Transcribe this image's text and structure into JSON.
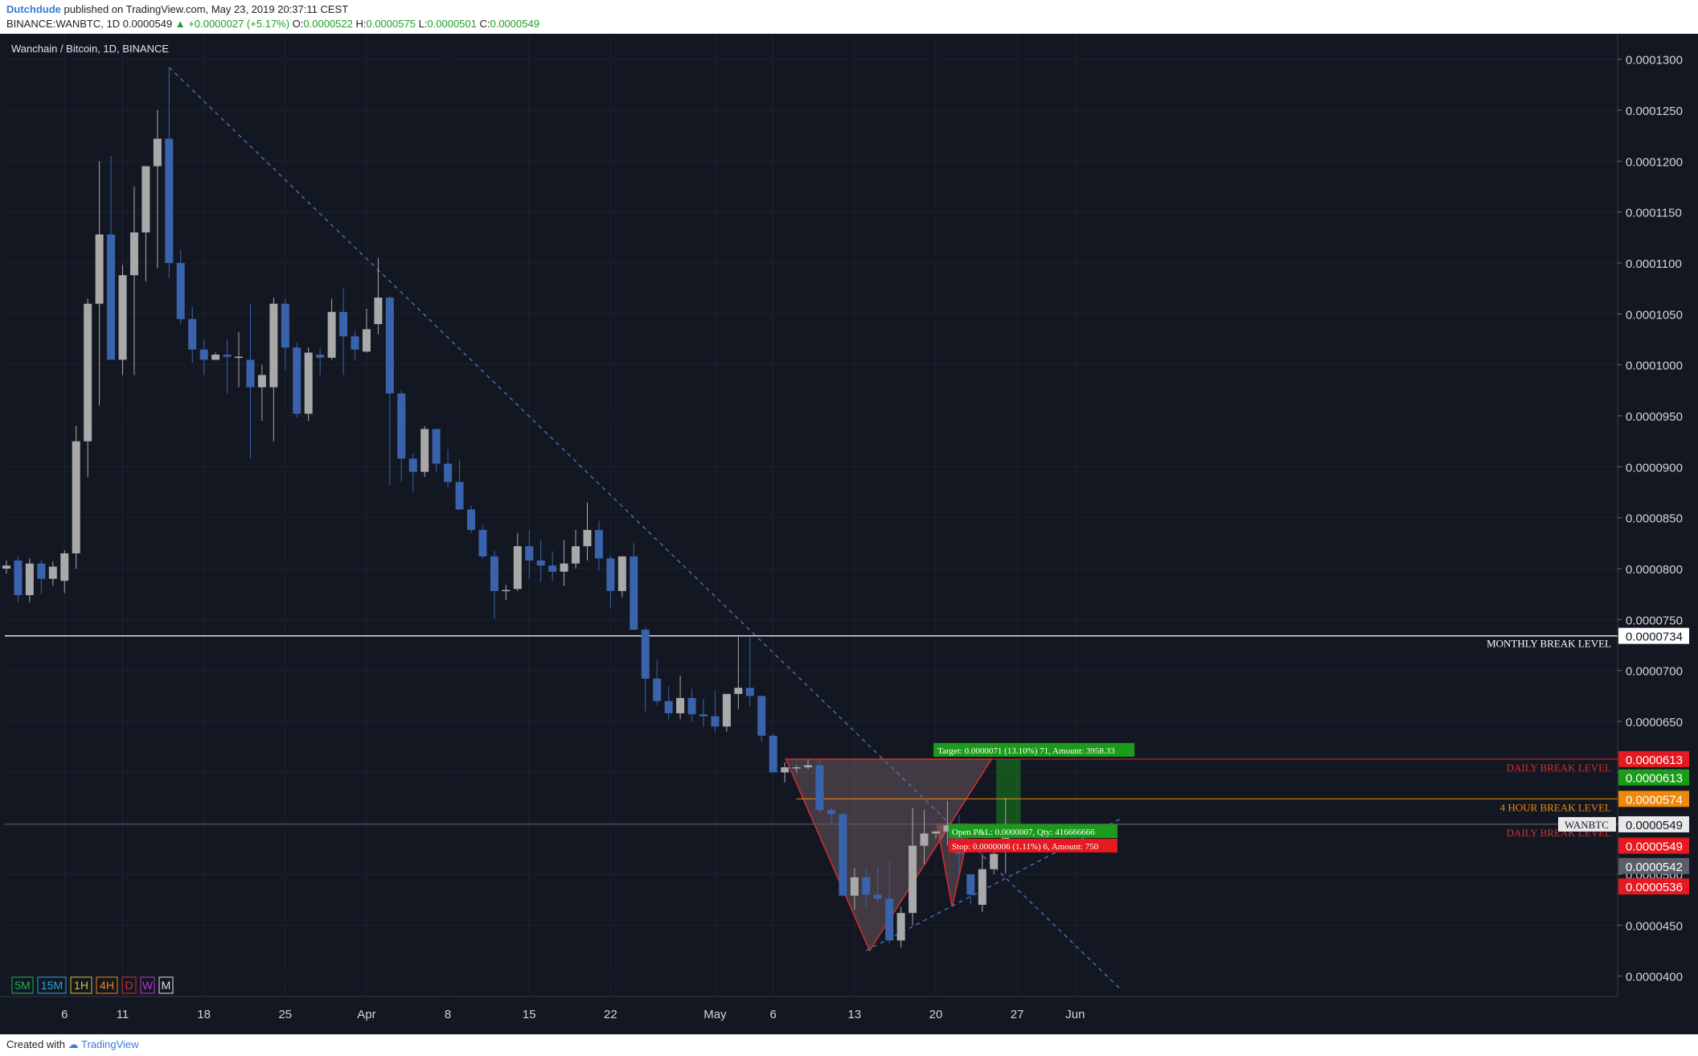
{
  "header": {
    "author": "Dutchdude",
    "published": "published on TradingView.com, May 23, 2019 20:37:11 CEST",
    "symbol_line_prefix": "BINANCE:WANBTC, 1D",
    "last_price": "0.0000549",
    "change": "▲ +0.0000027 (+5.17%)",
    "ohlc": {
      "o_label": "O:",
      "o": "0.0000522",
      "h_label": "H:",
      "h": "0.0000575",
      "l_label": "L:",
      "l": "0.0000501",
      "c_label": "C:",
      "c": "0.0000549"
    }
  },
  "chart_title": "Wanchain / Bitcoin, 1D, BINANCE",
  "footer": {
    "created_with": "Created with",
    "brand": "TradingView"
  },
  "colors": {
    "background": "#131722",
    "bull": "#a9a9a9",
    "bear": "#3a63ad",
    "grid": "#1e2230",
    "axis_text": "#d1d4dc",
    "trendline": "#4a78c8",
    "red_level": "#d32f2f",
    "orange_level": "#f0890b",
    "green": "#1a9c1a"
  },
  "timeframes": [
    {
      "label": "5M",
      "color": "#22b14c"
    },
    {
      "label": "15M",
      "color": "#2aa7d8"
    },
    {
      "label": "1H",
      "color": "#d6c218"
    },
    {
      "label": "4H",
      "color": "#f0890b"
    },
    {
      "label": "D",
      "color": "#d32f2f"
    },
    {
      "label": "W",
      "color": "#b535c8"
    },
    {
      "label": "M",
      "color": "#e0e0e0"
    }
  ],
  "chart_data": {
    "type": "candlestick",
    "title": "Wanchain / Bitcoin, 1D, BINANCE",
    "ylim": [
      3.8e-05,
      0.0001325
    ],
    "y_ticks": [
      "0.0001300",
      "0.0001250",
      "0.0001200",
      "0.0001150",
      "0.0001100",
      "0.0001050",
      "0.0001000",
      "0.0000950",
      "0.0000900",
      "0.0000850",
      "0.0000800",
      "0.0000750",
      "0.0000700",
      "0.0000650",
      "0.0000600",
      "0.0000550",
      "0.0000500",
      "0.0000450",
      "0.0000400"
    ],
    "x_ticks": [
      {
        "label": "6",
        "day": 5
      },
      {
        "label": "11",
        "day": 10
      },
      {
        "label": "18",
        "day": 17
      },
      {
        "label": "25",
        "day": 24
      },
      {
        "label": "Apr",
        "day": 31
      },
      {
        "label": "8",
        "day": 38
      },
      {
        "label": "15",
        "day": 45
      },
      {
        "label": "22",
        "day": 52
      },
      {
        "label": "May",
        "day": 61
      },
      {
        "label": "6",
        "day": 66
      },
      {
        "label": "13",
        "day": 73
      },
      {
        "label": "20",
        "day": 80
      },
      {
        "label": "27",
        "day": 87
      },
      {
        "label": "Jun",
        "day": 92
      }
    ],
    "candles": [
      [
        8e-05,
        8.08e-05,
        7.95e-05,
        8.03e-05
      ],
      [
        8.08e-05,
        8.12e-05,
        7.67e-05,
        7.74e-05
      ],
      [
        7.74e-05,
        8.1e-05,
        7.67e-05,
        8.05e-05
      ],
      [
        8.05e-05,
        8.08e-05,
        7.75e-05,
        7.9e-05
      ],
      [
        7.9e-05,
        8.07e-05,
        7.83e-05,
        8.02e-05
      ],
      [
        7.88e-05,
        8.18e-05,
        7.76e-05,
        8.15e-05
      ],
      [
        8.15e-05,
        9.4e-05,
        8e-05,
        9.25e-05
      ],
      [
        9.25e-05,
        0.0001065,
        8.9e-05,
        0.000106
      ],
      [
        0.000106,
        0.00012,
        9.6e-05,
        0.0001128
      ],
      [
        0.0001128,
        0.0001205,
        0.0001005,
        0.0001005
      ],
      [
        0.0001005,
        0.0001098,
        9.9e-05,
        0.0001088
      ],
      [
        0.0001088,
        0.0001175,
        9.9e-05,
        0.000113
      ],
      [
        0.000113,
        0.0001195,
        0.0001082,
        0.0001195
      ],
      [
        0.0001195,
        0.000125,
        0.0001095,
        0.0001222
      ],
      [
        0.0001222,
        0.0001292,
        0.0001085,
        0.00011
      ],
      [
        0.00011,
        0.0001113,
        0.000104,
        0.0001045
      ],
      [
        0.0001045,
        0.0001057,
        0.0001002,
        0.0001015
      ],
      [
        0.0001015,
        0.0001025,
        9.9e-05,
        0.0001005
      ],
      [
        0.0001005,
        0.0001012,
        0.0001005,
        0.000101
      ],
      [
        0.000101,
        0.0001025,
        9.72e-05,
        0.0001008
      ],
      [
        0.0001008,
        0.0001032,
        9.78e-05,
        0.0001008
      ],
      [
        0.0001005,
        0.000106,
        9.08e-05,
        9.78e-05
      ],
      [
        9.78e-05,
        0.0001,
        9.45e-05,
        9.9e-05
      ],
      [
        9.78e-05,
        0.0001066,
        9.25e-05,
        0.000106
      ],
      [
        0.000106,
        0.0001065,
        9.95e-05,
        0.0001017
      ],
      [
        0.0001017,
        0.0001022,
        9.48e-05,
        9.52e-05
      ],
      [
        9.52e-05,
        0.0001017,
        9.45e-05,
        0.0001012
      ],
      [
        0.000101,
        0.0001017,
        9.9e-05,
        0.0001007
      ],
      [
        0.0001007,
        0.0001065,
        0.0001005,
        0.0001052
      ],
      [
        0.0001052,
        0.0001075,
        9.9e-05,
        0.0001028
      ],
      [
        0.0001028,
        0.0001033,
        0.0001005,
        0.0001015
      ],
      [
        0.0001013,
        0.0001055,
        0.0001012,
        0.0001035
      ],
      [
        0.000104,
        0.0001105,
        0.000103,
        0.0001066
      ],
      [
        0.0001066,
        0.0001068,
        8.82e-05,
        9.72e-05
      ],
      [
        9.72e-05,
        9.75e-05,
        8.85e-05,
        9.08e-05
      ],
      [
        9.08e-05,
        9.13e-05,
        8.75e-05,
        8.95e-05
      ],
      [
        8.95e-05,
        9.4e-05,
        8.9e-05,
        9.37e-05
      ],
      [
        9.37e-05,
        9.37e-05,
        8.95e-05,
        9.03e-05
      ],
      [
        9.03e-05,
        9.17e-05,
        8.8e-05,
        8.85e-05
      ],
      [
        8.85e-05,
        9.07e-05,
        8.58e-05,
        8.58e-05
      ],
      [
        8.58e-05,
        8.62e-05,
        8.35e-05,
        8.38e-05
      ],
      [
        8.38e-05,
        8.43e-05,
        8.1e-05,
        8.12e-05
      ],
      [
        8.12e-05,
        8.18e-05,
        7.51e-05,
        7.78e-05
      ],
      [
        7.78e-05,
        7.84e-05,
        7.69e-05,
        7.79e-05
      ],
      [
        7.8e-05,
        8.35e-05,
        7.78e-05,
        8.22e-05
      ],
      [
        8.22e-05,
        8.38e-05,
        7.9e-05,
        8.08e-05
      ],
      [
        8.08e-05,
        8.28e-05,
        7.87e-05,
        8.03e-05
      ],
      [
        8.03e-05,
        8.17e-05,
        7.88e-05,
        7.97e-05
      ],
      [
        7.97e-05,
        8.28e-05,
        7.83e-05,
        8.05e-05
      ],
      [
        8.05e-05,
        8.38e-05,
        8e-05,
        8.22e-05
      ],
      [
        8.22e-05,
        8.65e-05,
        8.08e-05,
        8.38e-05
      ],
      [
        8.38e-05,
        8.47e-05,
        7.98e-05,
        8.1e-05
      ],
      [
        8.1e-05,
        8.13e-05,
        7.62e-05,
        7.78e-05
      ],
      [
        7.78e-05,
        8.12e-05,
        7.72e-05,
        8.12e-05
      ],
      [
        8.12e-05,
        8.25e-05,
        7.4e-05,
        7.4e-05
      ],
      [
        7.4e-05,
        7.42e-05,
        6.6e-05,
        6.92e-05
      ],
      [
        6.92e-05,
        7.1e-05,
        6.66e-05,
        6.7e-05
      ],
      [
        6.7e-05,
        6.85e-05,
        6.52e-05,
        6.58e-05
      ],
      [
        6.58e-05,
        6.95e-05,
        6.52e-05,
        6.73e-05
      ],
      [
        6.73e-05,
        6.82e-05,
        6.5e-05,
        6.57e-05
      ],
      [
        6.57e-05,
        6.72e-05,
        6.45e-05,
        6.55e-05
      ],
      [
        6.55e-05,
        6.8e-05,
        6.4e-05,
        6.45e-05
      ],
      [
        6.45e-05,
        6.76e-05,
        6.4e-05,
        6.77e-05
      ],
      [
        6.77e-05,
        7.33e-05,
        6.62e-05,
        6.83e-05
      ],
      [
        6.83e-05,
        7.33e-05,
        6.65e-05,
        6.75e-05
      ],
      [
        6.75e-05,
        6.75e-05,
        6.3e-05,
        6.36e-05
      ],
      [
        6.36e-05,
        6.38e-05,
        6e-05,
        6e-05
      ],
      [
        6e-05,
        6.1e-05,
        5.9e-05,
        6.05e-05
      ],
      [
        6.05e-05,
        6.07e-05,
        6e-05,
        6.05e-05
      ],
      [
        6.05e-05,
        6.13e-05,
        6.03e-05,
        6.07e-05
      ],
      [
        6.07e-05,
        6.12e-05,
        5.6e-05,
        5.63e-05
      ],
      [
        5.63e-05,
        5.65e-05,
        5.5e-05,
        5.59e-05
      ],
      [
        5.59e-05,
        5.6e-05,
        4.78e-05,
        4.79e-05
      ],
      [
        4.79e-05,
        5.06e-05,
        4.65e-05,
        4.97e-05
      ],
      [
        4.97e-05,
        5.05e-05,
        4.68e-05,
        4.8e-05
      ],
      [
        4.8e-05,
        5.07e-05,
        4.72e-05,
        4.76e-05
      ],
      [
        4.76e-05,
        5.12e-05,
        4.32e-05,
        4.35e-05
      ],
      [
        4.35e-05,
        4.68e-05,
        4.28e-05,
        4.62e-05
      ],
      [
        4.62e-05,
        5.65e-05,
        4.5e-05,
        5.28e-05
      ],
      [
        5.28e-05,
        5.63e-05,
        5.1e-05,
        5.4e-05
      ],
      [
        5.4e-05,
        5.42e-05,
        5.35e-05,
        5.42e-05
      ],
      [
        5.42e-05,
        5.72e-05,
        5.28e-05,
        5.48e-05
      ],
      [
        5.48e-05,
        5.58e-05,
        4.98e-05,
        5.2e-05
      ],
      [
        5e-05,
        5e-05,
        4.7e-05,
        4.8e-05
      ],
      [
        4.7e-05,
        5.2e-05,
        4.63e-05,
        5.05e-05
      ],
      [
        5.05e-05,
        5.23e-05,
        5e-05,
        5.2e-05
      ],
      [
        5.22e-05,
        5.75e-05,
        5.01e-05,
        5.49e-05
      ]
    ],
    "horizontal_lines": [
      {
        "label": "MONTHLY BREAK LEVEL",
        "price": 7.34e-05,
        "color": "#ffffff"
      },
      {
        "label": "4 HOUR BREAK LEVEL",
        "price": 5.74e-05,
        "color": "#f0890b",
        "start_day": 68
      },
      {
        "label": "DAILY BREAK LEVEL",
        "price": 6.13e-05,
        "color": "#d32f2f",
        "start_day": 67
      },
      {
        "label": "DAILY BREAK LEVEL",
        "price": 5.49e-05,
        "color": "#d32f2f",
        "start_day": 81
      }
    ],
    "trendlines": [
      {
        "from": [
          14,
          0.0001292
        ],
        "to": [
          96,
          3.86e-05
        ]
      },
      {
        "from": [
          74,
          4.25e-05
        ],
        "to": [
          96,
          5.55e-05
        ]
      }
    ],
    "price_labels": [
      {
        "text": "0.0000734",
        "price": 7.34e-05,
        "bg": "#ffffff",
        "fg": "#131722"
      },
      {
        "text": "0.0000613",
        "price": 6.13e-05,
        "bg": "#e5191f",
        "fg": "#ffffff"
      },
      {
        "text": "0.0000613",
        "price": 5.95e-05,
        "bg": "#1a9c1a",
        "fg": "#ffffff"
      },
      {
        "text": "0.0000574",
        "price": 5.74e-05,
        "bg": "#f0890b",
        "fg": "#ffffff"
      },
      {
        "text": "0.0000549",
        "price": 5.49e-05,
        "bg": "#e8e8e8",
        "fg": "#131722"
      },
      {
        "text": "0.0000549",
        "price": 5.28e-05,
        "bg": "#e5191f",
        "fg": "#ffffff"
      },
      {
        "text": "0.0000542",
        "price": 5.08e-05,
        "bg": "#5a5f69",
        "fg": "#ffffff"
      },
      {
        "text": "0.0000536",
        "price": 4.88e-05,
        "bg": "#e5191f",
        "fg": "#ffffff"
      }
    ],
    "position": {
      "target": "Target: 0.0000071 (13.10%) 71, Amount: 3958.33",
      "open_pnl": "Open P&L: 0.0000007, Qty: 416666666",
      "stop": "Stop: 0.0000006 (1.11%) 6, Amount: 750",
      "symbol_tag": "WANBTC"
    }
  }
}
